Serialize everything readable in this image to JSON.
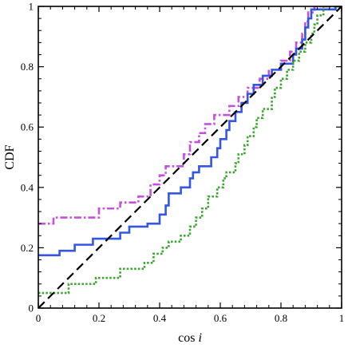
{
  "chart_data": {
    "type": "line",
    "title": "",
    "xlabel": "cos",
    "xlabel_italic": "i",
    "ylabel": "CDF",
    "xlim": [
      0,
      1
    ],
    "ylim": [
      0,
      1
    ],
    "xticks": [
      "0",
      "0.2",
      "0.4",
      "0.6",
      "0.8",
      "1"
    ],
    "yticks": [
      "0",
      "0.2",
      "0.4",
      "0.6",
      "0.8",
      "1"
    ],
    "grid": false,
    "legend": "none",
    "series": [
      {
        "style": "dash-dot",
        "color": "#c74fe0",
        "points": [
          [
            0,
            0.28
          ],
          [
            0.05,
            0.28
          ],
          [
            0.05,
            0.3
          ],
          [
            0.2,
            0.3
          ],
          [
            0.2,
            0.33
          ],
          [
            0.27,
            0.33
          ],
          [
            0.27,
            0.35
          ],
          [
            0.33,
            0.35
          ],
          [
            0.33,
            0.37
          ],
          [
            0.37,
            0.37
          ],
          [
            0.37,
            0.41
          ],
          [
            0.4,
            0.41
          ],
          [
            0.4,
            0.44
          ],
          [
            0.42,
            0.44
          ],
          [
            0.42,
            0.47
          ],
          [
            0.48,
            0.47
          ],
          [
            0.48,
            0.51
          ],
          [
            0.5,
            0.51
          ],
          [
            0.5,
            0.55
          ],
          [
            0.53,
            0.55
          ],
          [
            0.53,
            0.58
          ],
          [
            0.55,
            0.58
          ],
          [
            0.55,
            0.61
          ],
          [
            0.58,
            0.61
          ],
          [
            0.58,
            0.64
          ],
          [
            0.63,
            0.64
          ],
          [
            0.63,
            0.67
          ],
          [
            0.66,
            0.67
          ],
          [
            0.66,
            0.7
          ],
          [
            0.69,
            0.7
          ],
          [
            0.69,
            0.73
          ],
          [
            0.73,
            0.73
          ],
          [
            0.73,
            0.76
          ],
          [
            0.76,
            0.76
          ],
          [
            0.76,
            0.79
          ],
          [
            0.8,
            0.79
          ],
          [
            0.8,
            0.82
          ],
          [
            0.83,
            0.82
          ],
          [
            0.83,
            0.85
          ],
          [
            0.85,
            0.85
          ],
          [
            0.85,
            0.88
          ],
          [
            0.87,
            0.88
          ],
          [
            0.87,
            0.91
          ],
          [
            0.88,
            0.91
          ],
          [
            0.88,
            0.95
          ],
          [
            0.89,
            0.95
          ],
          [
            0.89,
            0.98
          ],
          [
            0.91,
            0.98
          ],
          [
            0.91,
            1.0
          ],
          [
            1.0,
            1.0
          ]
        ]
      },
      {
        "style": "solid",
        "color": "#3456e6",
        "points": [
          [
            0,
            0.175
          ],
          [
            0.07,
            0.175
          ],
          [
            0.07,
            0.19
          ],
          [
            0.12,
            0.19
          ],
          [
            0.12,
            0.21
          ],
          [
            0.18,
            0.21
          ],
          [
            0.18,
            0.23
          ],
          [
            0.27,
            0.23
          ],
          [
            0.27,
            0.25
          ],
          [
            0.3,
            0.25
          ],
          [
            0.3,
            0.27
          ],
          [
            0.36,
            0.27
          ],
          [
            0.36,
            0.28
          ],
          [
            0.4,
            0.28
          ],
          [
            0.4,
            0.31
          ],
          [
            0.42,
            0.31
          ],
          [
            0.42,
            0.34
          ],
          [
            0.43,
            0.34
          ],
          [
            0.43,
            0.38
          ],
          [
            0.47,
            0.38
          ],
          [
            0.47,
            0.4
          ],
          [
            0.5,
            0.4
          ],
          [
            0.5,
            0.43
          ],
          [
            0.51,
            0.43
          ],
          [
            0.51,
            0.45
          ],
          [
            0.53,
            0.45
          ],
          [
            0.53,
            0.47
          ],
          [
            0.57,
            0.47
          ],
          [
            0.57,
            0.5
          ],
          [
            0.59,
            0.5
          ],
          [
            0.59,
            0.53
          ],
          [
            0.6,
            0.53
          ],
          [
            0.6,
            0.56
          ],
          [
            0.62,
            0.56
          ],
          [
            0.62,
            0.59
          ],
          [
            0.63,
            0.59
          ],
          [
            0.63,
            0.62
          ],
          [
            0.65,
            0.62
          ],
          [
            0.65,
            0.65
          ],
          [
            0.67,
            0.65
          ],
          [
            0.67,
            0.68
          ],
          [
            0.69,
            0.68
          ],
          [
            0.69,
            0.71
          ],
          [
            0.71,
            0.71
          ],
          [
            0.71,
            0.74
          ],
          [
            0.74,
            0.74
          ],
          [
            0.74,
            0.77
          ],
          [
            0.77,
            0.77
          ],
          [
            0.77,
            0.79
          ],
          [
            0.8,
            0.79
          ],
          [
            0.8,
            0.81
          ],
          [
            0.84,
            0.81
          ],
          [
            0.84,
            0.84
          ],
          [
            0.85,
            0.84
          ],
          [
            0.85,
            0.86
          ],
          [
            0.87,
            0.86
          ],
          [
            0.87,
            0.89
          ],
          [
            0.88,
            0.89
          ],
          [
            0.88,
            0.93
          ],
          [
            0.89,
            0.93
          ],
          [
            0.89,
            0.96
          ],
          [
            0.9,
            0.96
          ],
          [
            0.9,
            0.99
          ],
          [
            0.98,
            0.99
          ],
          [
            0.98,
            1.0
          ],
          [
            1.0,
            1.0
          ]
        ]
      },
      {
        "style": "dotted",
        "color": "#3aa62c",
        "points": [
          [
            0,
            0.05
          ],
          [
            0.1,
            0.05
          ],
          [
            0.1,
            0.08
          ],
          [
            0.19,
            0.08
          ],
          [
            0.19,
            0.1
          ],
          [
            0.27,
            0.1
          ],
          [
            0.27,
            0.13
          ],
          [
            0.35,
            0.13
          ],
          [
            0.35,
            0.15
          ],
          [
            0.38,
            0.15
          ],
          [
            0.38,
            0.18
          ],
          [
            0.41,
            0.18
          ],
          [
            0.41,
            0.2
          ],
          [
            0.43,
            0.2
          ],
          [
            0.43,
            0.22
          ],
          [
            0.47,
            0.22
          ],
          [
            0.47,
            0.24
          ],
          [
            0.5,
            0.24
          ],
          [
            0.5,
            0.27
          ],
          [
            0.52,
            0.27
          ],
          [
            0.52,
            0.3
          ],
          [
            0.54,
            0.3
          ],
          [
            0.54,
            0.33
          ],
          [
            0.56,
            0.33
          ],
          [
            0.56,
            0.37
          ],
          [
            0.59,
            0.37
          ],
          [
            0.59,
            0.4
          ],
          [
            0.61,
            0.4
          ],
          [
            0.61,
            0.43
          ],
          [
            0.62,
            0.43
          ],
          [
            0.62,
            0.45
          ],
          [
            0.65,
            0.45
          ],
          [
            0.65,
            0.48
          ],
          [
            0.66,
            0.48
          ],
          [
            0.66,
            0.51
          ],
          [
            0.68,
            0.51
          ],
          [
            0.68,
            0.54
          ],
          [
            0.69,
            0.54
          ],
          [
            0.69,
            0.57
          ],
          [
            0.71,
            0.57
          ],
          [
            0.71,
            0.6
          ],
          [
            0.72,
            0.6
          ],
          [
            0.72,
            0.63
          ],
          [
            0.74,
            0.63
          ],
          [
            0.74,
            0.66
          ],
          [
            0.77,
            0.66
          ],
          [
            0.77,
            0.7
          ],
          [
            0.78,
            0.7
          ],
          [
            0.78,
            0.73
          ],
          [
            0.8,
            0.73
          ],
          [
            0.8,
            0.76
          ],
          [
            0.82,
            0.76
          ],
          [
            0.82,
            0.79
          ],
          [
            0.84,
            0.79
          ],
          [
            0.84,
            0.82
          ],
          [
            0.86,
            0.82
          ],
          [
            0.86,
            0.85
          ],
          [
            0.88,
            0.85
          ],
          [
            0.88,
            0.88
          ],
          [
            0.9,
            0.88
          ],
          [
            0.9,
            0.91
          ],
          [
            0.91,
            0.91
          ],
          [
            0.91,
            0.94
          ],
          [
            0.92,
            0.94
          ],
          [
            0.92,
            0.97
          ],
          [
            0.94,
            0.97
          ],
          [
            0.94,
            1.0
          ],
          [
            1.0,
            1.0
          ]
        ]
      },
      {
        "style": "dashed",
        "color": "#000000",
        "points": [
          [
            0,
            0
          ],
          [
            1,
            1
          ]
        ]
      }
    ]
  }
}
